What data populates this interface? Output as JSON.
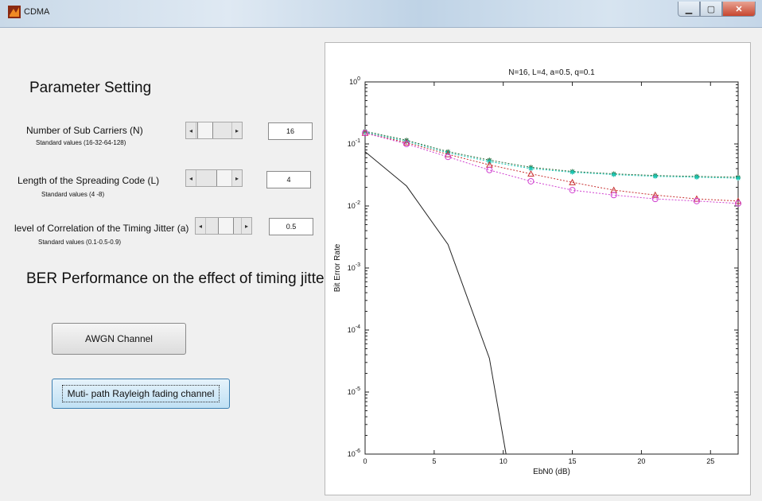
{
  "window": {
    "title": "CDMA"
  },
  "panel": {
    "heading": "Parameter Setting",
    "params": [
      {
        "label": "Number of Sub Carriers (N)",
        "hint": "Standard values (16-32-64-128)",
        "value": "16",
        "slider_fraction": 0.05
      },
      {
        "label": "Length of the Spreading Code (L)",
        "hint": "Standard values (4 -8)",
        "value": "4",
        "slider_fraction": 0.5
      },
      {
        "label": "level of Correlation of the Timing Jitter (a)",
        "hint": "Standard values (0.1-0.5-0.9)",
        "value": "0.5",
        "slider_fraction": 0.5
      }
    ],
    "ber_heading": "BER Performance on the effect of timing jitters in",
    "buttons": {
      "awgn": "AWGN Channel",
      "rayleigh": "Muti- path Rayleigh fading channel"
    }
  },
  "chart_data": {
    "type": "line",
    "title": "N=16, L=4, a=0.5, q=0.1",
    "xlabel": "EbN0 (dB)",
    "ylabel": "Bit Error Rate",
    "xlim": [
      0,
      27
    ],
    "ylim": [
      1e-06,
      1
    ],
    "yscale": "log",
    "xticks": [
      "0",
      "5",
      "10",
      "15",
      "20",
      "25"
    ],
    "yticks": [
      {
        "value": 1,
        "base": "10",
        "exp": "0"
      },
      {
        "value": 0.1,
        "base": "10",
        "exp": "-1"
      },
      {
        "value": 0.01,
        "base": "10",
        "exp": "-2"
      },
      {
        "value": 0.001,
        "base": "10",
        "exp": "-3"
      },
      {
        "value": 0.0001,
        "base": "10",
        "exp": "-4"
      },
      {
        "value": 1e-05,
        "base": "10",
        "exp": "-5"
      },
      {
        "value": 1e-06,
        "base": "10",
        "exp": "-6"
      }
    ],
    "series": [
      {
        "color": "#222222",
        "dash": "",
        "marker": "none",
        "x": [
          0,
          3,
          6,
          9,
          10.2
        ],
        "y": [
          0.075,
          0.021,
          0.0024,
          3.5e-05,
          1e-06
        ]
      },
      {
        "color": "#2a6a3a",
        "dash": "2,2",
        "marker": "star",
        "x": [
          0,
          3,
          6,
          9,
          12,
          15,
          18,
          21,
          24,
          27
        ],
        "y": [
          0.16,
          0.115,
          0.075,
          0.055,
          0.042,
          0.036,
          0.033,
          0.031,
          0.03,
          0.029
        ]
      },
      {
        "color": "#19c9b8",
        "dash": "2,2",
        "marker": "star",
        "x": [
          0,
          3,
          6,
          9,
          12,
          15,
          18,
          21,
          24,
          27
        ],
        "y": [
          0.155,
          0.11,
          0.072,
          0.052,
          0.04,
          0.035,
          0.032,
          0.03,
          0.029,
          0.028
        ]
      },
      {
        "color": "#c83232",
        "dash": "2,2",
        "marker": "triangle",
        "x": [
          0,
          3,
          6,
          9,
          12,
          15,
          18,
          21,
          24,
          27
        ],
        "y": [
          0.15,
          0.105,
          0.068,
          0.046,
          0.033,
          0.024,
          0.018,
          0.015,
          0.013,
          0.012
        ]
      },
      {
        "color": "#d040d0",
        "dash": "2,2",
        "marker": "circle",
        "x": [
          0,
          3,
          6,
          9,
          12,
          15,
          18,
          21,
          24,
          27
        ],
        "y": [
          0.15,
          0.1,
          0.062,
          0.038,
          0.025,
          0.018,
          0.015,
          0.013,
          0.012,
          0.011
        ]
      }
    ]
  }
}
